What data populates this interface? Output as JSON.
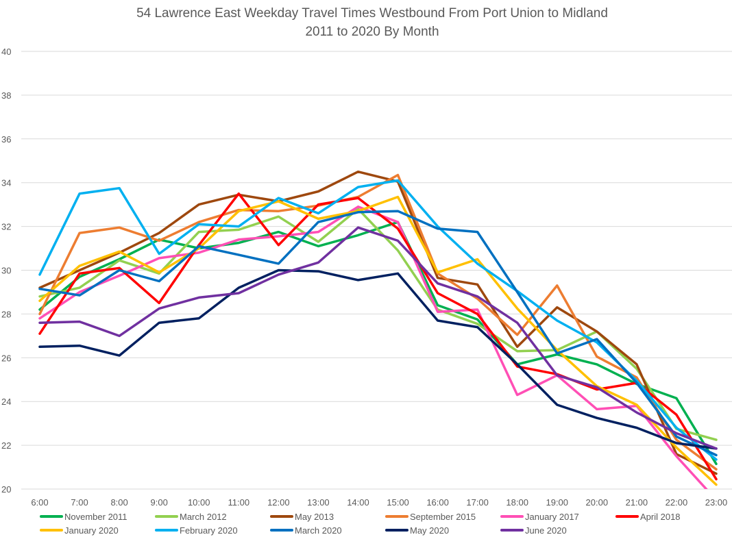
{
  "chart_data": {
    "type": "line",
    "title": "54 Lawrence East Weekday Travel Times Westbound From Port Union to Midland",
    "subtitle": "2011 to 2020 By Month",
    "xlabel": "",
    "ylabel": "",
    "ylim": [
      20,
      40
    ],
    "yticks": [
      "20",
      "22",
      "24",
      "26",
      "28",
      "30",
      "32",
      "34",
      "36",
      "38",
      "40"
    ],
    "grid": true,
    "legend_position": "bottom",
    "categories": [
      "6:00",
      "7:00",
      "8:00",
      "9:00",
      "10:00",
      "11:00",
      "12:00",
      "13:00",
      "14:00",
      "15:00",
      "16:00",
      "17:00",
      "18:00",
      "19:00",
      "20:00",
      "21:00",
      "22:00",
      "23:00"
    ],
    "series": [
      {
        "name": "November 2011",
        "color": "#00B050",
        "values": [
          28.2,
          29.7,
          30.5,
          31.4,
          31.0,
          31.25,
          31.75,
          31.1,
          31.6,
          32.2,
          28.4,
          27.75,
          25.7,
          26.15,
          25.7,
          24.8,
          24.15,
          21.15
        ]
      },
      {
        "name": "March 2012",
        "color": "#92D050",
        "values": [
          28.8,
          29.2,
          30.45,
          29.85,
          31.75,
          31.85,
          32.45,
          31.3,
          32.8,
          30.9,
          28.2,
          27.55,
          26.3,
          26.35,
          27.2,
          25.5,
          22.75,
          22.25
        ]
      },
      {
        "name": "May 2013",
        "color": "#9E480E",
        "values": [
          29.2,
          30.0,
          30.8,
          31.7,
          33.0,
          33.45,
          33.15,
          33.6,
          34.5,
          34.05,
          29.65,
          29.35,
          26.5,
          28.3,
          27.2,
          25.7,
          21.6,
          20.7
        ]
      },
      {
        "name": "September 2015",
        "color": "#ED7D31",
        "values": [
          28.0,
          31.7,
          31.95,
          31.35,
          32.2,
          32.75,
          32.7,
          32.95,
          33.35,
          34.35,
          29.85,
          28.7,
          27.05,
          29.3,
          26.05,
          25.1,
          22.25,
          20.9
        ]
      },
      {
        "name": "January 2017",
        "color": "#FF4FB5",
        "values": [
          27.8,
          29.0,
          29.75,
          30.55,
          30.8,
          31.4,
          31.55,
          31.75,
          32.9,
          32.2,
          28.1,
          28.2,
          24.3,
          25.2,
          23.65,
          23.8,
          21.5,
          19.5
        ]
      },
      {
        "name": "April 2018",
        "color": "#FF0000",
        "values": [
          27.1,
          29.85,
          30.1,
          28.5,
          31.15,
          33.5,
          31.15,
          33.0,
          33.3,
          31.9,
          28.95,
          28.0,
          25.6,
          25.25,
          24.55,
          24.85,
          23.4,
          20.45
        ]
      },
      {
        "name": "January 2020",
        "color": "#FFC000",
        "values": [
          28.6,
          30.2,
          30.85,
          29.9,
          31.0,
          32.7,
          33.15,
          32.35,
          32.7,
          33.35,
          29.9,
          30.5,
          28.25,
          26.35,
          24.7,
          23.85,
          21.9,
          20.2
        ]
      },
      {
        "name": "February 2020",
        "color": "#00B0F0",
        "values": [
          29.8,
          33.5,
          33.75,
          30.75,
          32.1,
          32.0,
          33.3,
          32.6,
          33.8,
          34.1,
          32.0,
          30.3,
          29.05,
          27.7,
          26.7,
          24.95,
          22.8,
          21.35
        ]
      },
      {
        "name": "March 2020",
        "color": "#0070C0",
        "values": [
          29.15,
          28.85,
          30.0,
          29.5,
          31.1,
          30.7,
          30.3,
          32.2,
          32.65,
          32.7,
          31.9,
          31.75,
          29.0,
          26.2,
          26.85,
          24.85,
          22.4,
          21.55
        ]
      },
      {
        "name": "May 2020",
        "color": "#002060",
        "values": [
          26.5,
          26.55,
          26.1,
          27.6,
          27.8,
          29.2,
          30.0,
          29.95,
          29.55,
          29.85,
          27.7,
          27.4,
          25.7,
          23.85,
          23.25,
          22.8,
          22.1,
          21.85
        ]
      },
      {
        "name": "June 2020",
        "color": "#7030A0",
        "values": [
          27.6,
          27.65,
          27.0,
          28.25,
          28.75,
          28.95,
          29.8,
          30.35,
          31.95,
          31.35,
          29.4,
          28.8,
          27.6,
          25.2,
          24.65,
          23.5,
          22.55,
          21.85
        ]
      }
    ]
  }
}
